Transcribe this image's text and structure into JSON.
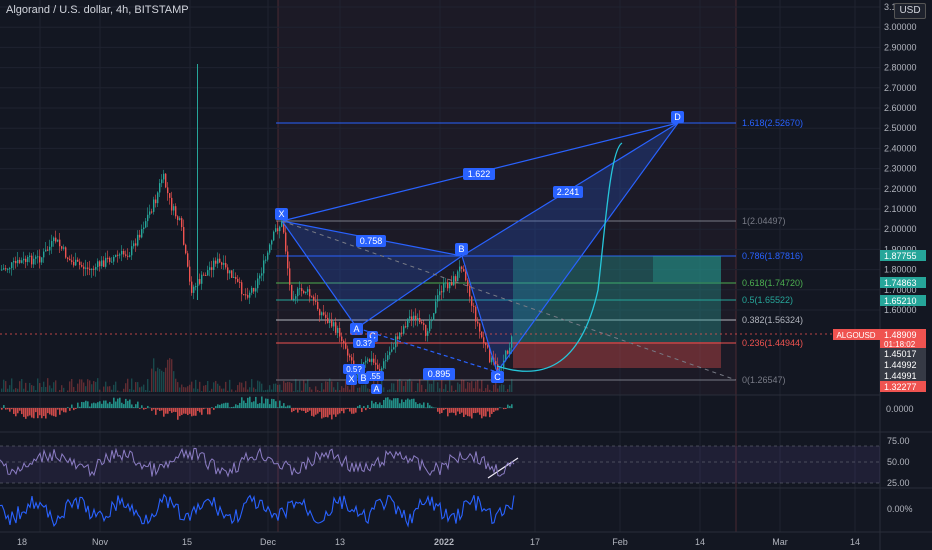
{
  "header": {
    "title": "Algorand / U.S. dollar, 4h, BITSTAMP",
    "currency": "USD"
  },
  "colors": {
    "background": "#131722",
    "up": "#26a69a",
    "down": "#ef5350",
    "pattern": "#2962ff",
    "fib": "#5c6bc0"
  },
  "price_axis": {
    "ticks": [
      "3.10000",
      "3.00000",
      "2.90000",
      "2.80000",
      "2.70000",
      "2.60000",
      "2.50000",
      "2.40000",
      "2.30000",
      "2.20000",
      "2.10000",
      "2.00000",
      "1.90000",
      "1.80000",
      "1.70000",
      "1.60000"
    ]
  },
  "price_tags": [
    {
      "label": "1.87755",
      "color": "#26a69a"
    },
    {
      "label": "1.74863",
      "color": "#26a69a"
    },
    {
      "label": "1.65210",
      "color": "#26a69a"
    },
    {
      "label": "1.48909",
      "color": "#ef5350",
      "sub": "01:18:02"
    },
    {
      "label": "1.45017",
      "color": "#363a45"
    },
    {
      "label": "1.44992",
      "color": "#363a45"
    },
    {
      "label": "1.44991",
      "color": "#363a45"
    },
    {
      "label": "1.32277",
      "color": "#ef5350"
    }
  ],
  "symbol_tag": "ALGOUSD",
  "fib_levels": [
    {
      "label": "1.618(2.52670)",
      "color": "#2962ff"
    },
    {
      "label": "1(2.04497)",
      "color": "#787b86"
    },
    {
      "label": "0.786(1.87816)",
      "color": "#2962ff"
    },
    {
      "label": "0.618(1.74720)",
      "color": "#4caf50"
    },
    {
      "label": "0.5(1.65522)",
      "color": "#26a69a"
    },
    {
      "label": "0.382(1.56324)",
      "color": "#b2b5be"
    },
    {
      "label": "0.236(1.44944)",
      "color": "#ef5350"
    },
    {
      "label": "0(1.26547)",
      "color": "#787b86"
    }
  ],
  "pattern_points": {
    "x": "X",
    "a": "A",
    "b": "B",
    "c": "C",
    "d": "D"
  },
  "ratios": {
    "xb": "0.758",
    "ac": "0.895",
    "bd": "2.241",
    "xd": "1.622"
  },
  "small_pattern": {
    "x": "X",
    "b": "B",
    "a1": "A",
    "a2": "A",
    "c": "C",
    "r1": "0.5?",
    "r2": "0.3?",
    "r3": ".55"
  },
  "indicators": {
    "osc_value": "0.0000",
    "rsi_ticks": [
      "75.00",
      "50.00",
      "25.00"
    ],
    "bottom_value": "0.00%"
  },
  "time_axis": {
    "labels": [
      "18",
      "Nov",
      "15",
      "Dec",
      "13",
      "2022",
      "17",
      "Feb",
      "14",
      "Mar",
      "14"
    ]
  }
}
